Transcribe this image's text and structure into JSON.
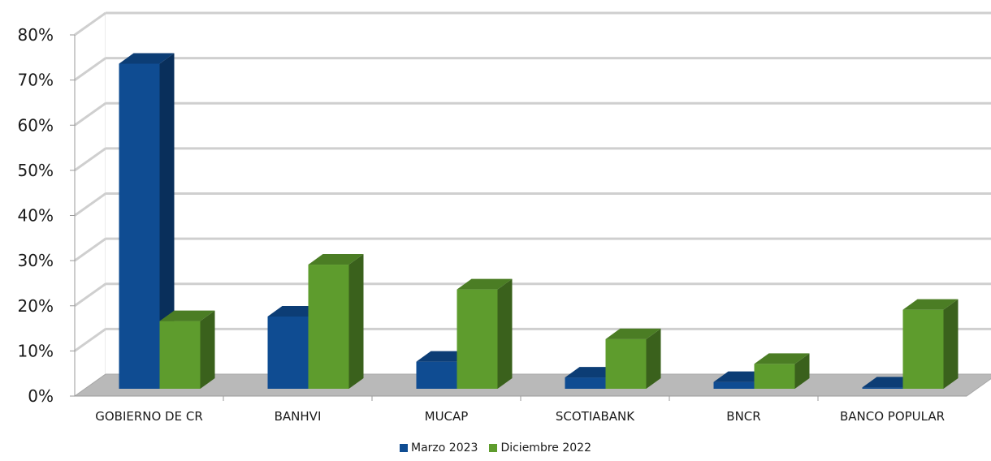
{
  "chart_data": {
    "type": "bar",
    "categories": [
      "GOBIERNO DE CR",
      "BANHVI",
      "MUCAP",
      "SCOTIABANK",
      "BNCR",
      "BANCO POPULAR"
    ],
    "series": [
      {
        "name": "Marzo 2023",
        "values": [
          72,
          16,
          6,
          2.5,
          1.5,
          0.3
        ],
        "color": "#0F4C92"
      },
      {
        "name": "Diciembre 2022",
        "values": [
          15,
          27.5,
          22,
          11,
          5.5,
          17.5
        ],
        "color": "#5E9C2D"
      }
    ],
    "y_ticks": [
      "0%",
      "10%",
      "20%",
      "30%",
      "40%",
      "50%",
      "60%",
      "70%",
      "80%"
    ],
    "ylim": [
      0,
      80
    ],
    "grid": true,
    "legend_position": "bottom"
  }
}
